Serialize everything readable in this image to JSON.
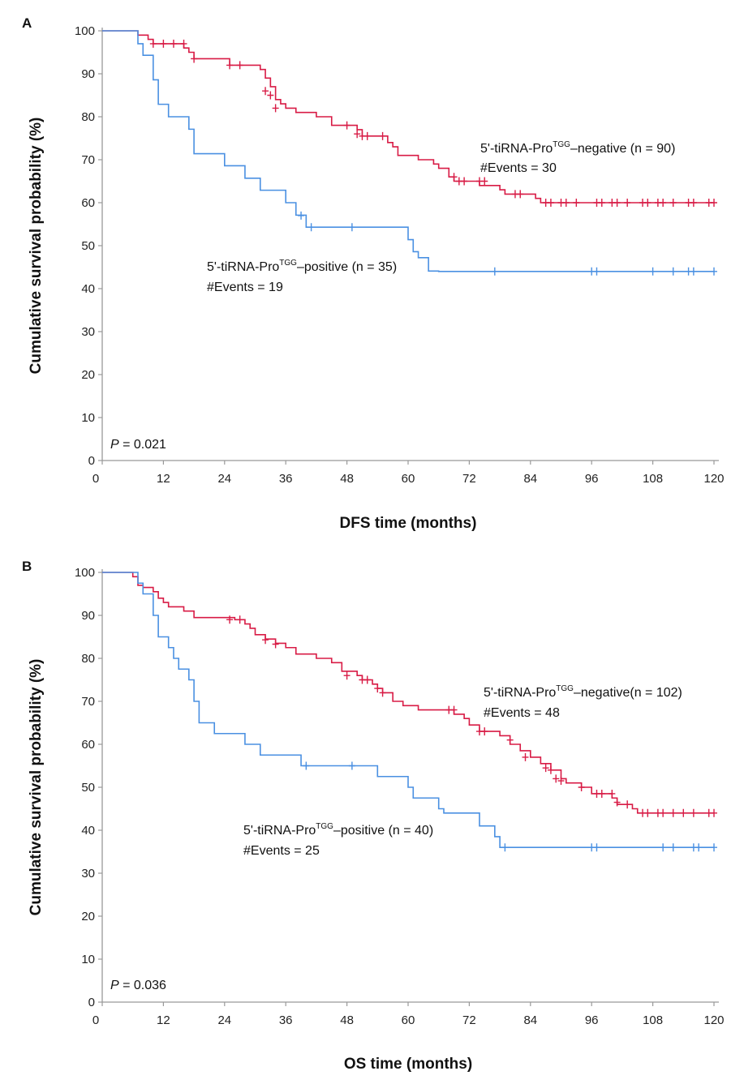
{
  "chart_data": [
    {
      "type": "line",
      "panel": "A",
      "xlabel": "DFS time (months)",
      "ylabel": "Cumulative survival probability (%)",
      "xticks": [
        0,
        12,
        24,
        36,
        48,
        60,
        72,
        84,
        96,
        108,
        120
      ],
      "yticks": [
        0,
        10,
        20,
        30,
        40,
        50,
        60,
        70,
        80,
        90,
        100
      ],
      "xlim": [
        0,
        120
      ],
      "ylim": [
        0,
        100
      ],
      "p_value": {
        "label": "P",
        "text": " = 0.021"
      },
      "series": [
        {
          "name": "5'-tiRNA-Pro TGG –negative (n = 90)",
          "label_parts": {
            "pre": "5'-tiRNA-Pro",
            "sup": "TGG",
            "post": "–negative (n = 90)"
          },
          "events_label": "#Events = 30",
          "color": "#d81b45",
          "steps": [
            [
              0,
              100
            ],
            [
              7,
              99
            ],
            [
              9,
              98
            ],
            [
              10,
              97
            ],
            [
              12,
              97
            ],
            [
              16,
              96
            ],
            [
              17,
              95
            ],
            [
              18,
              93.5
            ],
            [
              24,
              93.5
            ],
            [
              25,
              92
            ],
            [
              31,
              91
            ],
            [
              32,
              89
            ],
            [
              33,
              87
            ],
            [
              34,
              84
            ],
            [
              35,
              83
            ],
            [
              36,
              82
            ],
            [
              38,
              81
            ],
            [
              42,
              80
            ],
            [
              45,
              78
            ],
            [
              50,
              77
            ],
            [
              51,
              75.5
            ],
            [
              56,
              74
            ],
            [
              57,
              73
            ],
            [
              58,
              71
            ],
            [
              62,
              70
            ],
            [
              65,
              69
            ],
            [
              66,
              68
            ],
            [
              68,
              66
            ],
            [
              69,
              65
            ],
            [
              74,
              64
            ],
            [
              78,
              63
            ],
            [
              79,
              62
            ],
            [
              85,
              61
            ],
            [
              86,
              60
            ],
            [
              120,
              60
            ]
          ],
          "censored": [
            [
              10,
              97
            ],
            [
              12,
              97
            ],
            [
              14,
              97
            ],
            [
              16,
              97
            ],
            [
              18,
              93.5
            ],
            [
              25,
              92
            ],
            [
              27,
              92
            ],
            [
              32,
              86
            ],
            [
              33,
              85
            ],
            [
              34,
              82
            ],
            [
              48,
              78
            ],
            [
              50,
              76
            ],
            [
              51,
              75.5
            ],
            [
              52,
              75.5
            ],
            [
              55,
              75.5
            ],
            [
              69,
              66
            ],
            [
              70,
              65
            ],
            [
              71,
              65
            ],
            [
              74,
              65
            ],
            [
              75,
              65
            ],
            [
              81,
              62
            ],
            [
              82,
              62
            ],
            [
              87,
              60
            ],
            [
              88,
              60
            ],
            [
              90,
              60
            ],
            [
              91,
              60
            ],
            [
              93,
              60
            ],
            [
              97,
              60
            ],
            [
              98,
              60
            ],
            [
              100,
              60
            ],
            [
              101,
              60
            ],
            [
              103,
              60
            ],
            [
              106,
              60
            ],
            [
              107,
              60
            ],
            [
              109,
              60
            ],
            [
              110,
              60
            ],
            [
              112,
              60
            ],
            [
              115,
              60
            ],
            [
              116,
              60
            ],
            [
              119,
              60
            ],
            [
              120,
              60
            ]
          ]
        },
        {
          "name": "5'-tiRNA-Pro TGG –positive (n = 35)",
          "label_parts": {
            "pre": "5'-tiRNA-Pro",
            "sup": "TGG",
            "post": "–positive (n = 35)"
          },
          "events_label": "#Events = 19",
          "color": "#4a90e2",
          "steps": [
            [
              0,
              100
            ],
            [
              7,
              97
            ],
            [
              8,
              94.3
            ],
            [
              10,
              88.6
            ],
            [
              11,
              82.9
            ],
            [
              13,
              80
            ],
            [
              17,
              77.1
            ],
            [
              18,
              71.4
            ],
            [
              24,
              68.6
            ],
            [
              28,
              65.7
            ],
            [
              31,
              62.9
            ],
            [
              36,
              60
            ],
            [
              38,
              57.1
            ],
            [
              40,
              54.3
            ],
            [
              60,
              51.4
            ],
            [
              61,
              48.6
            ],
            [
              62,
              47.2
            ],
            [
              64,
              44.1
            ],
            [
              66,
              44
            ],
            [
              120,
              44
            ]
          ],
          "censored": [
            [
              39,
              57
            ],
            [
              41,
              54.3
            ],
            [
              49,
              54.3
            ],
            [
              77,
              44
            ],
            [
              96,
              44
            ],
            [
              97,
              44
            ],
            [
              108,
              44
            ],
            [
              112,
              44
            ],
            [
              115,
              44
            ],
            [
              116,
              44
            ],
            [
              120,
              44
            ]
          ]
        }
      ]
    },
    {
      "type": "line",
      "panel": "B",
      "xlabel": "OS time (months)",
      "ylabel": "Cumulative survival probability (%)",
      "xticks": [
        0,
        12,
        24,
        36,
        48,
        60,
        72,
        84,
        96,
        108,
        120
      ],
      "yticks": [
        0,
        10,
        20,
        30,
        40,
        50,
        60,
        70,
        80,
        90,
        100
      ],
      "xlim": [
        0,
        120
      ],
      "ylim": [
        0,
        100
      ],
      "p_value": {
        "label": "P",
        "text": " = 0.036"
      },
      "series": [
        {
          "name": "5'-tiRNA-Pro TGG –negative(n = 102)",
          "label_parts": {
            "pre": "5'-tiRNA-Pro",
            "sup": "TGG",
            "post": "–negative(n = 102)"
          },
          "events_label": "#Events = 48",
          "color": "#d81b45",
          "steps": [
            [
              0,
              100
            ],
            [
              6,
              99
            ],
            [
              7,
              97
            ],
            [
              8,
              96.5
            ],
            [
              10,
              95.5
            ],
            [
              11,
              94
            ],
            [
              12,
              93
            ],
            [
              13,
              92
            ],
            [
              16,
              91
            ],
            [
              18,
              89.5
            ],
            [
              26,
              89
            ],
            [
              28,
              88
            ],
            [
              29,
              87
            ],
            [
              30,
              85.5
            ],
            [
              32,
              84.5
            ],
            [
              34,
              83.5
            ],
            [
              36,
              82.5
            ],
            [
              38,
              81
            ],
            [
              42,
              80
            ],
            [
              45,
              79
            ],
            [
              47,
              77
            ],
            [
              50,
              76
            ],
            [
              51,
              75
            ],
            [
              53,
              74
            ],
            [
              54,
              73
            ],
            [
              55,
              72
            ],
            [
              57,
              70
            ],
            [
              59,
              69
            ],
            [
              62,
              68
            ],
            [
              69,
              67
            ],
            [
              71,
              66
            ],
            [
              72,
              64.5
            ],
            [
              74,
              63
            ],
            [
              78,
              62
            ],
            [
              80,
              60
            ],
            [
              82,
              58.5
            ],
            [
              84,
              57
            ],
            [
              86,
              55.5
            ],
            [
              88,
              54
            ],
            [
              90,
              52
            ],
            [
              91,
              51
            ],
            [
              94,
              50
            ],
            [
              96,
              48.5
            ],
            [
              100,
              47.5
            ],
            [
              101,
              46
            ],
            [
              104,
              45
            ],
            [
              105,
              44
            ],
            [
              120,
              44
            ]
          ],
          "censored": [
            [
              25,
              89
            ],
            [
              27,
              89
            ],
            [
              32,
              84.3
            ],
            [
              34,
              83.3
            ],
            [
              48,
              76
            ],
            [
              51,
              75
            ],
            [
              52,
              75
            ],
            [
              54,
              73
            ],
            [
              55,
              72
            ],
            [
              68,
              68
            ],
            [
              69,
              68
            ],
            [
              74,
              63
            ],
            [
              75,
              63
            ],
            [
              80,
              61
            ],
            [
              83,
              57
            ],
            [
              87,
              54.5
            ],
            [
              88,
              54
            ],
            [
              89,
              52
            ],
            [
              90,
              51.5
            ],
            [
              94,
              50
            ],
            [
              97,
              48.5
            ],
            [
              98,
              48.5
            ],
            [
              100,
              48.5
            ],
            [
              101,
              46.5
            ],
            [
              103,
              46
            ],
            [
              106,
              44
            ],
            [
              107,
              44
            ],
            [
              109,
              44
            ],
            [
              110,
              44
            ],
            [
              112,
              44
            ],
            [
              114,
              44
            ],
            [
              116,
              44
            ],
            [
              119,
              44
            ],
            [
              120,
              44
            ]
          ]
        },
        {
          "name": "5'-tiRNA-Pro TGG –positive (n = 40)",
          "label_parts": {
            "pre": "5'-tiRNA-Pro",
            "sup": "TGG",
            "post": "–positive (n = 40)"
          },
          "events_label": "#Events = 25",
          "color": "#4a90e2",
          "steps": [
            [
              0,
              100
            ],
            [
              7,
              97.5
            ],
            [
              8,
              95
            ],
            [
              10,
              90
            ],
            [
              11,
              85
            ],
            [
              13,
              82.5
            ],
            [
              14,
              80
            ],
            [
              15,
              77.5
            ],
            [
              17,
              75
            ],
            [
              18,
              70
            ],
            [
              19,
              65
            ],
            [
              22,
              62.5
            ],
            [
              28,
              60
            ],
            [
              31,
              57.5
            ],
            [
              39,
              55
            ],
            [
              54,
              52.5
            ],
            [
              60,
              50
            ],
            [
              61,
              47.5
            ],
            [
              66,
              45
            ],
            [
              67,
              44
            ],
            [
              74,
              41
            ],
            [
              77,
              38.5
            ],
            [
              78,
              36
            ],
            [
              120,
              36
            ]
          ],
          "censored": [
            [
              40,
              55
            ],
            [
              49,
              55
            ],
            [
              79,
              36
            ],
            [
              96,
              36
            ],
            [
              97,
              36
            ],
            [
              110,
              36
            ],
            [
              112,
              36
            ],
            [
              116,
              36
            ],
            [
              117,
              36
            ],
            [
              120,
              36
            ]
          ]
        }
      ]
    }
  ]
}
